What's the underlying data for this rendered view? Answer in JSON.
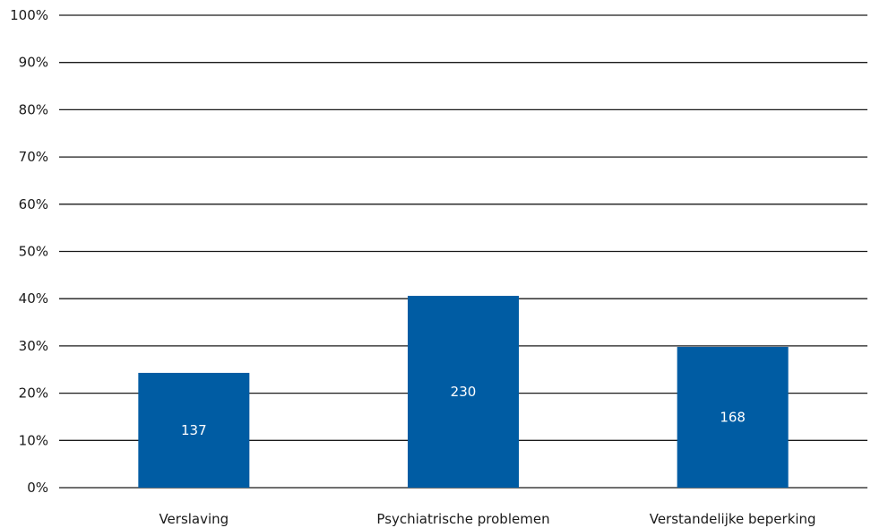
{
  "chart_data": {
    "type": "bar",
    "categories": [
      "Verslaving",
      "Psychiatrische problemen",
      "Verstandelijke beperking"
    ],
    "values": [
      24.3,
      40.6,
      29.8
    ],
    "data_labels": [
      "137",
      "230",
      "168"
    ],
    "ylim": [
      0,
      100
    ],
    "yticks": [
      "0%",
      "10%",
      "20%",
      "30%",
      "40%",
      "50%",
      "60%",
      "70%",
      "80%",
      "90%",
      "100%"
    ],
    "grid": true,
    "bar_color": "#005ca3",
    "title": "",
    "xlabel": "",
    "ylabel": ""
  }
}
